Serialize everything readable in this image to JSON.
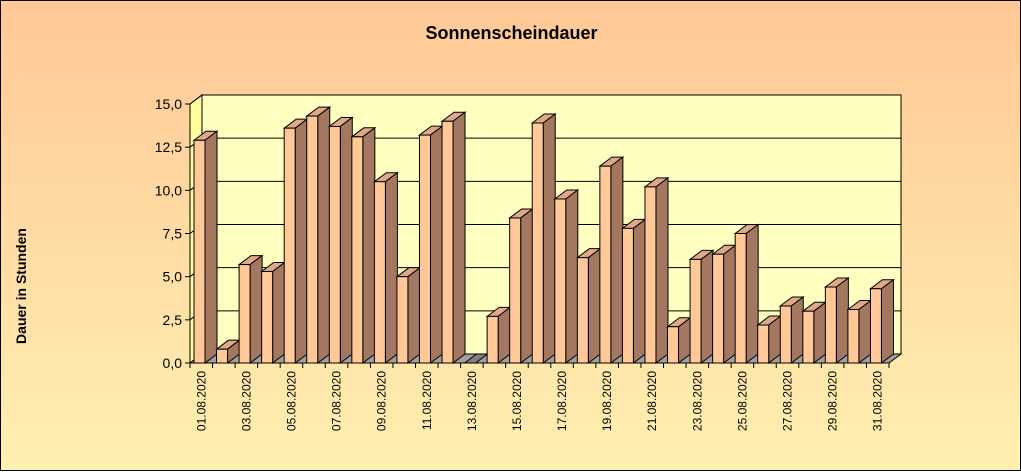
{
  "chart_data": {
    "type": "bar",
    "title": "Sonnenscheindauer",
    "xlabel": "",
    "ylabel": "Dauer in Stunden",
    "ylim": [
      0,
      15
    ],
    "yticks": [
      "0,0",
      "2,5",
      "5,0",
      "7,5",
      "10,0",
      "12,5",
      "15,0"
    ],
    "grid": true,
    "legend": "none",
    "categories": [
      "01.08.2020",
      "02.08.2020",
      "03.08.2020",
      "04.08.2020",
      "05.08.2020",
      "06.08.2020",
      "07.08.2020",
      "08.08.2020",
      "09.08.2020",
      "10.08.2020",
      "11.08.2020",
      "12.08.2020",
      "13.08.2020",
      "14.08.2020",
      "15.08.2020",
      "16.08.2020",
      "17.08.2020",
      "18.08.2020",
      "19.08.2020",
      "20.08.2020",
      "21.08.2020",
      "22.08.2020",
      "23.08.2020",
      "24.08.2020",
      "25.08.2020",
      "26.08.2020",
      "27.08.2020",
      "28.08.2020",
      "29.08.2020",
      "30.08.2020",
      "31.08.2020"
    ],
    "category_labels_shown": [
      "01.08.2020",
      "03.08.2020",
      "05.08.2020",
      "07.08.2020",
      "09.08.2020",
      "11.08.2020",
      "13.08.2020",
      "15.08.2020",
      "17.08.2020",
      "19.08.2020",
      "21.08.2020",
      "23.08.2020",
      "25.08.2020",
      "27.08.2020",
      "29.08.2020",
      "31.08.2020"
    ],
    "values": [
      12.9,
      0.8,
      5.7,
      5.3,
      13.6,
      14.3,
      13.7,
      13.1,
      10.5,
      5.0,
      13.2,
      14.0,
      0.0,
      2.7,
      8.4,
      13.9,
      9.5,
      6.1,
      11.4,
      7.8,
      10.2,
      2.1,
      6.0,
      6.3,
      7.5,
      2.2,
      3.3,
      3.0,
      4.4,
      3.1,
      4.3
    ],
    "colors": {
      "bar_front": "#ffc896",
      "bar_side": "#a47860",
      "bar_top": "#e0a888",
      "plot_back": "#ffffc0",
      "plot_side": "#ffffa0",
      "floor": "#a0a0a0"
    }
  }
}
